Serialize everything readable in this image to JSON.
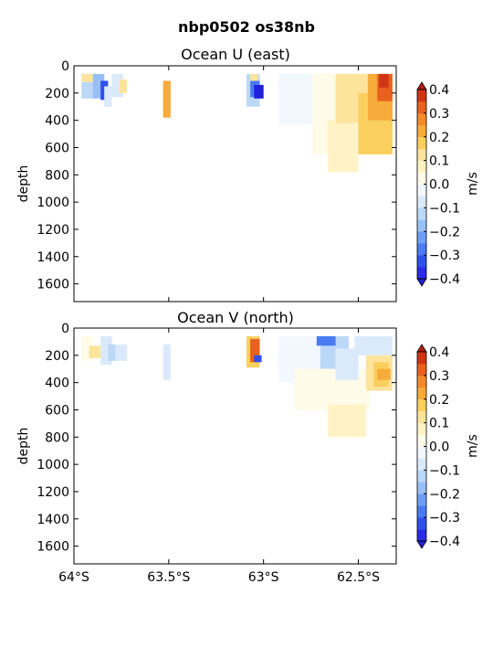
{
  "figure": {
    "suptitle": "nbp0502 os38nb"
  },
  "colormap": {
    "levels": [
      -0.4,
      -0.35,
      -0.3,
      -0.25,
      -0.2,
      -0.15,
      -0.1,
      -0.05,
      0.0,
      0.05,
      0.1,
      0.15,
      0.2,
      0.25,
      0.3,
      0.35,
      0.4
    ],
    "colors": [
      "#2b2bea",
      "#3050ee",
      "#4a7bf2",
      "#6f9ff4",
      "#98c0f6",
      "#bcd8f8",
      "#dbeafb",
      "#f2f8fd",
      "#fefbe8",
      "#fff3c6",
      "#fde49c",
      "#fbcf5e",
      "#f7ab3a",
      "#f28a2a",
      "#e8611e",
      "#cf3514"
    ],
    "under_color": "#2020d8",
    "over_color": "#bb1a0c"
  },
  "chart_data": [
    {
      "type": "heatmap",
      "title": "Ocean U (east)",
      "xlabel": "",
      "ylabel": "depth",
      "xlim": [
        -64.0,
        -62.3
      ],
      "ylim": [
        1730,
        0
      ],
      "x_ticks": [
        -64.0,
        -63.5,
        -63.0,
        -62.5
      ],
      "x_tick_labels": [
        "",
        "",
        "",
        ""
      ],
      "y_ticks": [
        0,
        200,
        400,
        600,
        800,
        1000,
        1200,
        1400,
        1600
      ],
      "y_tick_labels": [
        "0",
        "200",
        "400",
        "600",
        "800",
        "1000",
        "1200",
        "1400",
        "1600"
      ],
      "colorbar": {
        "label": "m/s",
        "ticks": [
          -0.4,
          -0.3,
          -0.2,
          -0.1,
          0.0,
          0.1,
          0.2,
          0.3,
          0.4
        ],
        "tick_labels": [
          "−0.4",
          "−0.3",
          "−0.2",
          "−0.1",
          "0.0",
          "0.1",
          "0.2",
          "0.3",
          "0.4"
        ]
      },
      "grid": false,
      "cells": [
        {
          "x0": -63.96,
          "x1": -63.88,
          "y0": 60,
          "y1": 120,
          "v": 0.12
        },
        {
          "x0": -63.96,
          "x1": -63.88,
          "y0": 120,
          "y1": 240,
          "v": -0.12
        },
        {
          "x0": -63.9,
          "x1": -63.84,
          "y0": 60,
          "y1": 240,
          "v": -0.18
        },
        {
          "x0": -63.86,
          "x1": -63.82,
          "y0": 110,
          "y1": 250,
          "v": -0.33
        },
        {
          "x0": -63.84,
          "x1": -63.8,
          "y0": 150,
          "y1": 300,
          "v": -0.06
        },
        {
          "x0": -63.8,
          "x1": -63.74,
          "y0": 60,
          "y1": 230,
          "v": -0.08
        },
        {
          "x0": -63.76,
          "x1": -63.72,
          "y0": 100,
          "y1": 200,
          "v": 0.12
        },
        {
          "x0": -63.53,
          "x1": -63.49,
          "y0": 110,
          "y1": 380,
          "v": 0.2
        },
        {
          "x0": -63.09,
          "x1": -63.02,
          "y0": 60,
          "y1": 300,
          "v": -0.12
        },
        {
          "x0": -63.07,
          "x1": -63.02,
          "y0": 110,
          "y1": 230,
          "v": -0.3
        },
        {
          "x0": -63.05,
          "x1": -63.0,
          "y0": 140,
          "y1": 240,
          "v": -0.42
        },
        {
          "x0": -63.07,
          "x1": -63.03,
          "y0": 60,
          "y1": 110,
          "v": 0.12
        },
        {
          "x0": -62.92,
          "x1": -62.74,
          "y0": 60,
          "y1": 430,
          "v": -0.04
        },
        {
          "x0": -62.74,
          "x1": -62.56,
          "y0": 60,
          "y1": 650,
          "v": 0.04
        },
        {
          "x0": -62.66,
          "x1": -62.5,
          "y0": 400,
          "y1": 780,
          "v": 0.06
        },
        {
          "x0": -62.62,
          "x1": -62.42,
          "y0": 60,
          "y1": 420,
          "v": 0.13
        },
        {
          "x0": -62.5,
          "x1": -62.32,
          "y0": 200,
          "y1": 650,
          "v": 0.18
        },
        {
          "x0": -62.45,
          "x1": -62.32,
          "y0": 60,
          "y1": 400,
          "v": 0.23
        },
        {
          "x0": -62.4,
          "x1": -62.32,
          "y0": 60,
          "y1": 260,
          "v": 0.3
        },
        {
          "x0": -62.39,
          "x1": -62.34,
          "y0": 60,
          "y1": 160,
          "v": 0.38
        }
      ]
    },
    {
      "type": "heatmap",
      "title": "Ocean V (north)",
      "xlabel": "",
      "ylabel": "depth",
      "xlim": [
        -64.0,
        -62.3
      ],
      "ylim": [
        1730,
        0
      ],
      "x_ticks": [
        -64.0,
        -63.5,
        -63.0,
        -62.5
      ],
      "x_tick_labels": [
        "64°S",
        "63.5°S",
        "63°S",
        "62.5°S"
      ],
      "y_ticks": [
        0,
        200,
        400,
        600,
        800,
        1000,
        1200,
        1400,
        1600
      ],
      "y_tick_labels": [
        "0",
        "200",
        "400",
        "600",
        "800",
        "1000",
        "1200",
        "1400",
        "1600"
      ],
      "colorbar": {
        "label": "m/s",
        "ticks": [
          -0.4,
          -0.3,
          -0.2,
          -0.1,
          0.0,
          0.1,
          0.2,
          0.3,
          0.4
        ],
        "tick_labels": [
          "−0.4",
          "−0.3",
          "−0.2",
          "−0.1",
          "0.0",
          "0.1",
          "0.2",
          "0.3",
          "0.4"
        ]
      },
      "grid": false,
      "cells": [
        {
          "x0": -63.96,
          "x1": -63.9,
          "y0": 60,
          "y1": 240,
          "v": 0.04
        },
        {
          "x0": -63.92,
          "x1": -63.86,
          "y0": 130,
          "y1": 220,
          "v": 0.12
        },
        {
          "x0": -63.86,
          "x1": -63.8,
          "y0": 60,
          "y1": 270,
          "v": -0.06
        },
        {
          "x0": -63.82,
          "x1": -63.78,
          "y0": 120,
          "y1": 240,
          "v": -0.14
        },
        {
          "x0": -63.78,
          "x1": -63.72,
          "y0": 120,
          "y1": 240,
          "v": -0.09
        },
        {
          "x0": -63.53,
          "x1": -63.49,
          "y0": 120,
          "y1": 380,
          "v": -0.07
        },
        {
          "x0": -63.09,
          "x1": -63.02,
          "y0": 60,
          "y1": 290,
          "v": 0.16
        },
        {
          "x0": -63.07,
          "x1": -63.02,
          "y0": 80,
          "y1": 250,
          "v": 0.3
        },
        {
          "x0": -63.05,
          "x1": -63.01,
          "y0": 200,
          "y1": 250,
          "v": -0.33
        },
        {
          "x0": -62.92,
          "x1": -62.7,
          "y0": 60,
          "y1": 400,
          "v": -0.05
        },
        {
          "x0": -62.7,
          "x1": -62.55,
          "y0": 60,
          "y1": 300,
          "v": -0.12
        },
        {
          "x0": -62.72,
          "x1": -62.62,
          "y0": 60,
          "y1": 130,
          "v": -0.3
        },
        {
          "x0": -62.84,
          "x1": -62.44,
          "y0": 300,
          "y1": 600,
          "v": 0.04
        },
        {
          "x0": -62.66,
          "x1": -62.46,
          "y0": 560,
          "y1": 800,
          "v": 0.05
        },
        {
          "x0": -62.62,
          "x1": -62.5,
          "y0": 150,
          "y1": 380,
          "v": -0.07
        },
        {
          "x0": -62.52,
          "x1": -62.32,
          "y0": 60,
          "y1": 200,
          "v": -0.1
        },
        {
          "x0": -62.46,
          "x1": -62.32,
          "y0": 200,
          "y1": 460,
          "v": 0.13
        },
        {
          "x0": -62.42,
          "x1": -62.34,
          "y0": 250,
          "y1": 430,
          "v": 0.19
        },
        {
          "x0": -62.4,
          "x1": -62.33,
          "y0": 300,
          "y1": 380,
          "v": 0.24
        }
      ]
    }
  ]
}
